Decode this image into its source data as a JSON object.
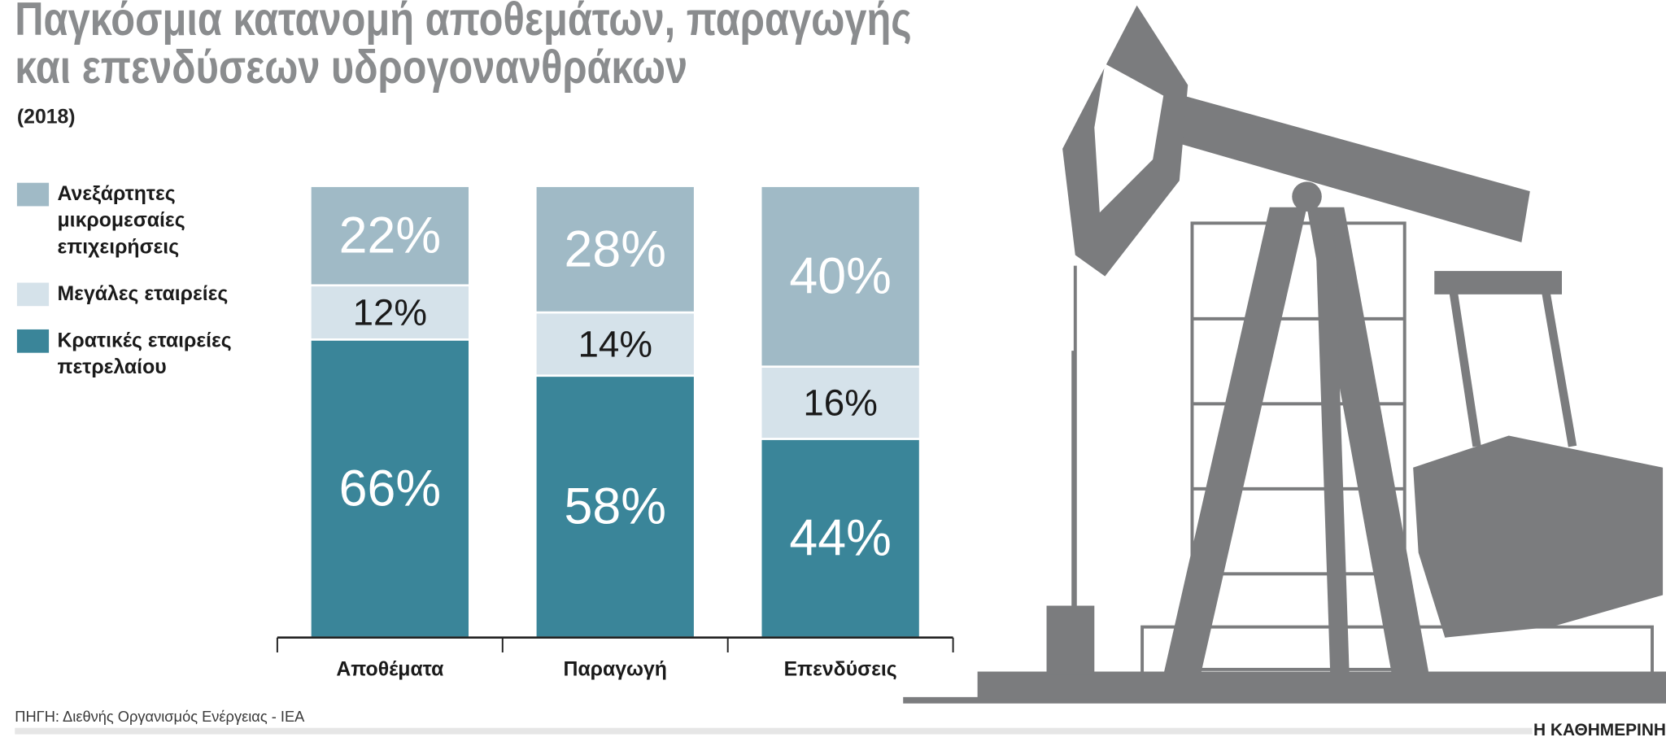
{
  "chart_data": {
    "type": "stacked-bar",
    "title": "Παγκόσμια κατανομή αποθεμάτων, παραγωγής και επενδύσεων υδρογονανθράκων",
    "subtitle": "(2018)",
    "categories": [
      "Αποθέματα",
      "Παραγωγή",
      "Επενδύσεις"
    ],
    "series": [
      {
        "name": "Κρατικές εταιρείες πετρελαίου",
        "color": "#3a8599",
        "values": [
          66,
          58,
          44
        ],
        "value_labels": [
          "66%",
          "58%",
          "44%"
        ]
      },
      {
        "name": "Μεγάλες εταιρείες",
        "color": "#d5e2ea",
        "values": [
          12,
          14,
          16
        ],
        "value_labels": [
          "12%",
          "14%",
          "16%"
        ]
      },
      {
        "name": "Ανεξάρτητες μικρομεσαίες επιχειρήσεις",
        "color": "#a0bac6",
        "values": [
          22,
          28,
          40
        ],
        "value_labels": [
          "22%",
          "28%",
          "40%"
        ]
      }
    ],
    "source": "ΠΗΓΗ: Διεθνής Οργανισμός Ενέργειας - IEA",
    "brand": "Η ΚΑΘΗΜΕΡΙΝΗ"
  }
}
